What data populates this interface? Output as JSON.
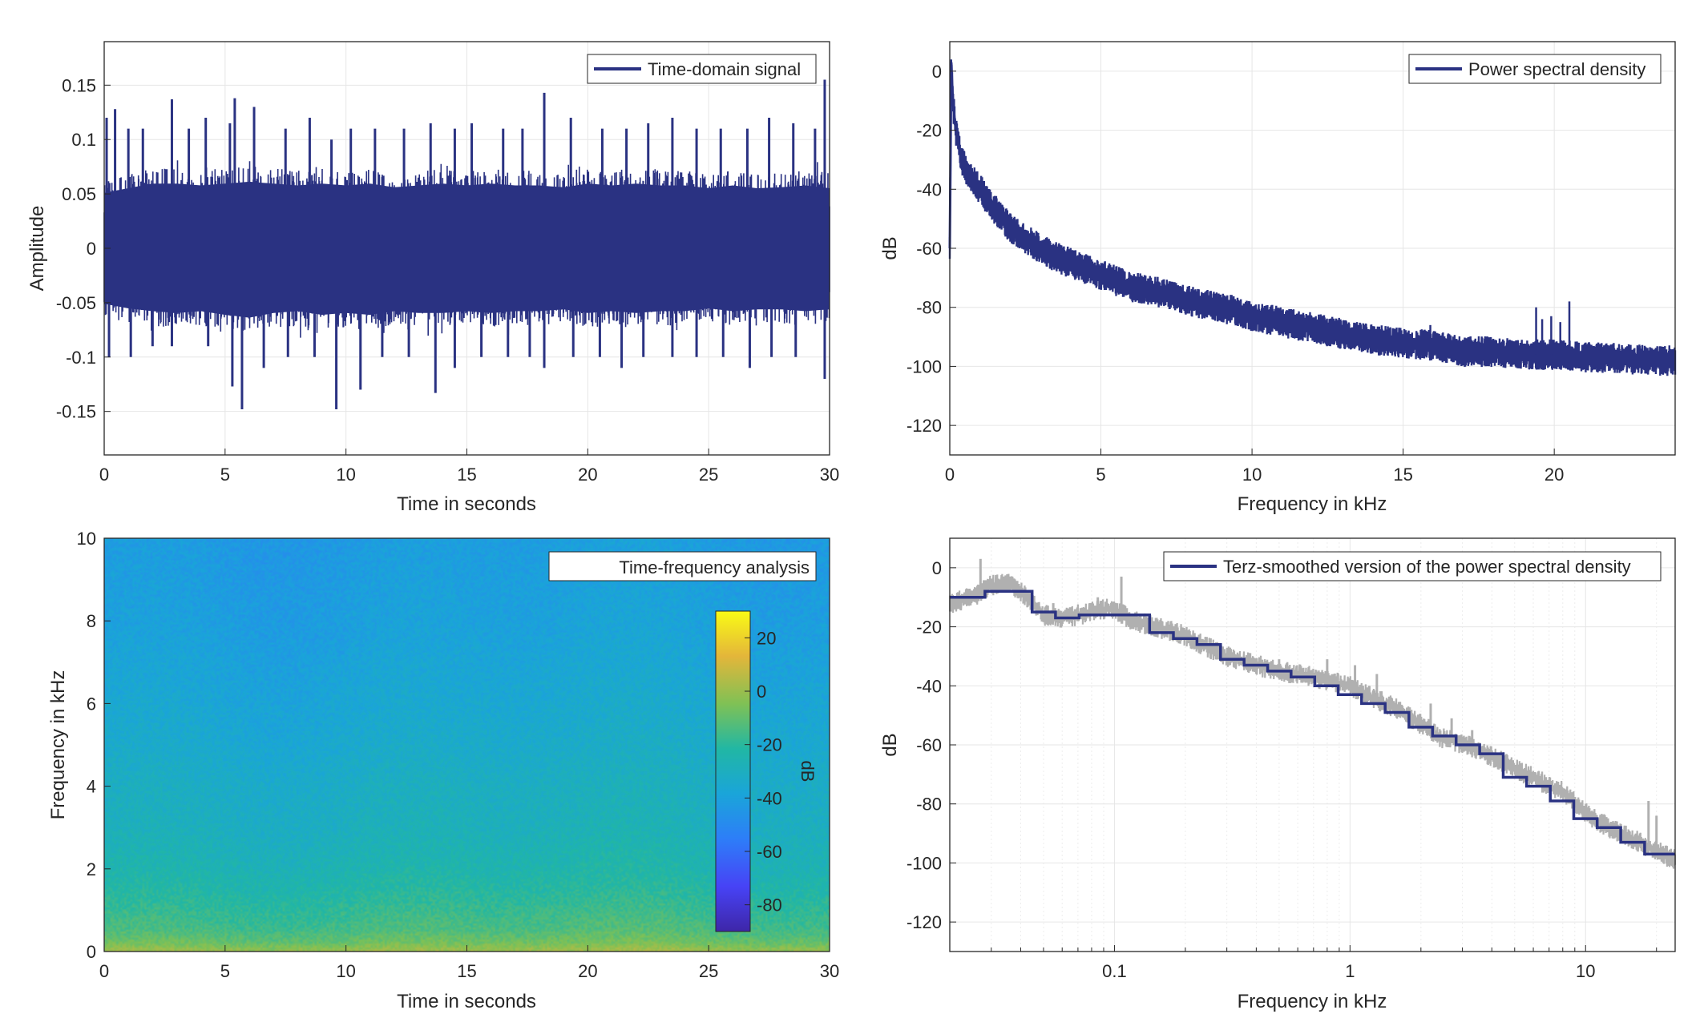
{
  "colors": {
    "series": "#2a3282",
    "raw_psd": "#b0b0b0",
    "grid": "#e6e6e6",
    "axes": "#262626",
    "colormap": "parula"
  },
  "chart_data": [
    {
      "id": "time-domain",
      "type": "line",
      "title": "",
      "xlabel": "Time in seconds",
      "ylabel": "Amplitude",
      "xlim": [
        0,
        30
      ],
      "ylim": [
        -0.19,
        0.19
      ],
      "xticks": [
        0,
        5,
        10,
        15,
        20,
        25,
        30
      ],
      "xtick_labels": [
        "0",
        "5",
        "10",
        "15",
        "20",
        "25",
        "30"
      ],
      "yticks": [
        -0.15,
        -0.1,
        -0.05,
        0,
        0.05,
        0.1,
        0.15
      ],
      "ytick_labels": [
        "-0.15",
        "-0.1",
        "-0.05",
        "0",
        "0.05",
        "0.1",
        "0.15"
      ],
      "grid": true,
      "legend": {
        "position": "top-right",
        "entries": [
          "Time-domain signal"
        ]
      },
      "series": [
        {
          "name": "Time-domain signal",
          "envelope_upper": [
            0.06,
            0.065,
            0.07,
            0.07,
            0.068,
            0.07,
            0.072,
            0.07,
            0.068,
            0.07,
            0.068,
            0.07,
            0.066,
            0.068,
            0.07,
            0.068,
            0.07,
            0.068,
            0.068,
            0.066,
            0.07,
            0.068,
            0.07,
            0.068,
            0.068,
            0.065,
            0.068,
            0.065,
            0.066,
            0.068,
            0.065
          ],
          "envelope_lower": [
            -0.06,
            -0.065,
            -0.068,
            -0.07,
            -0.068,
            -0.072,
            -0.075,
            -0.07,
            -0.068,
            -0.072,
            -0.07,
            -0.072,
            -0.068,
            -0.07,
            -0.07,
            -0.068,
            -0.07,
            -0.068,
            -0.068,
            -0.066,
            -0.07,
            -0.068,
            -0.07,
            -0.068,
            -0.068,
            -0.065,
            -0.068,
            -0.066,
            -0.066,
            -0.068,
            -0.066
          ],
          "peaks": [
            [
              0.1,
              0.12
            ],
            [
              0.45,
              0.128
            ],
            [
              1.0,
              0.11
            ],
            [
              1.6,
              0.11
            ],
            [
              2.8,
              0.137
            ],
            [
              3.5,
              0.11
            ],
            [
              4.2,
              0.12
            ],
            [
              5.2,
              0.115
            ],
            [
              5.4,
              0.138
            ],
            [
              6.2,
              0.13
            ],
            [
              7.5,
              0.11
            ],
            [
              8.5,
              0.12
            ],
            [
              9.4,
              0.1
            ],
            [
              10.2,
              0.11
            ],
            [
              11.2,
              0.11
            ],
            [
              12.4,
              0.11
            ],
            [
              13.5,
              0.115
            ],
            [
              14.5,
              0.11
            ],
            [
              15.2,
              0.115
            ],
            [
              16.5,
              0.11
            ],
            [
              17.3,
              0.11
            ],
            [
              18.2,
              0.143
            ],
            [
              19.3,
              0.12
            ],
            [
              20.6,
              0.11
            ],
            [
              21.6,
              0.11
            ],
            [
              22.5,
              0.115
            ],
            [
              23.5,
              0.12
            ],
            [
              24.5,
              0.11
            ],
            [
              25.5,
              0.11
            ],
            [
              26.6,
              0.11
            ],
            [
              27.5,
              0.12
            ],
            [
              28.5,
              0.115
            ],
            [
              29.4,
              0.11
            ],
            [
              29.8,
              0.155
            ],
            [
              0.2,
              -0.1
            ],
            [
              1.1,
              -0.1
            ],
            [
              2.0,
              -0.09
            ],
            [
              2.8,
              -0.09
            ],
            [
              4.3,
              -0.09
            ],
            [
              5.3,
              -0.127
            ],
            [
              5.7,
              -0.148
            ],
            [
              6.6,
              -0.11
            ],
            [
              7.6,
              -0.1
            ],
            [
              8.7,
              -0.1
            ],
            [
              9.6,
              -0.148
            ],
            [
              10.6,
              -0.13
            ],
            [
              11.5,
              -0.1
            ],
            [
              12.6,
              -0.1
            ],
            [
              13.7,
              -0.133
            ],
            [
              14.5,
              -0.11
            ],
            [
              15.6,
              -0.1
            ],
            [
              16.7,
              -0.1
            ],
            [
              17.6,
              -0.1
            ],
            [
              18.2,
              -0.11
            ],
            [
              19.4,
              -0.1
            ],
            [
              20.5,
              -0.1
            ],
            [
              21.4,
              -0.11
            ],
            [
              22.3,
              -0.1
            ],
            [
              23.5,
              -0.1
            ],
            [
              24.5,
              -0.1
            ],
            [
              25.6,
              -0.1
            ],
            [
              26.7,
              -0.11
            ],
            [
              27.6,
              -0.1
            ],
            [
              28.6,
              -0.1
            ],
            [
              29.8,
              -0.12
            ]
          ]
        }
      ]
    },
    {
      "id": "psd",
      "type": "line",
      "title": "",
      "xlabel": "Frequency in kHz",
      "ylabel": "dB",
      "xlim": [
        0,
        24
      ],
      "ylim": [
        -130,
        10
      ],
      "xticks": [
        0,
        5,
        10,
        15,
        20
      ],
      "xtick_labels": [
        "0",
        "5",
        "10",
        "15",
        "20"
      ],
      "yticks": [
        -120,
        -100,
        -80,
        -60,
        -40,
        -20,
        0
      ],
      "ytick_labels": [
        "-120",
        "-100",
        "-80",
        "-60",
        "-40",
        "-20",
        "0"
      ],
      "grid": true,
      "legend": {
        "position": "top-right",
        "entries": [
          "Power spectral density"
        ]
      },
      "series": [
        {
          "name": "Power spectral density",
          "x": [
            0,
            0.05,
            0.1,
            0.2,
            0.35,
            0.5,
            1,
            1.5,
            2,
            2.5,
            3,
            3.5,
            4,
            4.5,
            5,
            5.5,
            6,
            7,
            8,
            9,
            10,
            11,
            12,
            13,
            14,
            15,
            16,
            17,
            18,
            19,
            20,
            21,
            22,
            23,
            24
          ],
          "y": [
            -60,
            3,
            -10,
            -20,
            -28,
            -33,
            -40,
            -47,
            -53,
            -57,
            -60,
            -63,
            -65,
            -67,
            -69,
            -71,
            -73,
            -75,
            -78,
            -80,
            -83,
            -85,
            -87,
            -89,
            -91,
            -92,
            -93,
            -95,
            -95,
            -96,
            -96,
            -97,
            -97,
            -98,
            -98
          ],
          "spread": 4,
          "spikes": [
            [
              15.9,
              -86
            ],
            [
              19.4,
              -80
            ],
            [
              19.6,
              -84
            ],
            [
              19.9,
              -83
            ],
            [
              20.2,
              -85
            ],
            [
              20.5,
              -78
            ]
          ]
        }
      ]
    },
    {
      "id": "spectrogram",
      "type": "heatmap",
      "title": "",
      "xlabel": "Time in seconds",
      "ylabel": "Frequency in kHz",
      "xlim": [
        0,
        30
      ],
      "ylim": [
        0,
        10
      ],
      "xticks": [
        0,
        5,
        10,
        15,
        20,
        25,
        30
      ],
      "xtick_labels": [
        "0",
        "5",
        "10",
        "15",
        "20",
        "25",
        "30"
      ],
      "yticks": [
        0,
        2,
        4,
        6,
        8,
        10
      ],
      "ytick_labels": [
        "0",
        "2",
        "4",
        "6",
        "8",
        "10"
      ],
      "legend": {
        "position": "top-right",
        "entries": [
          "Time-frequency analysis"
        ]
      },
      "colorbar": {
        "label": "dB",
        "clim": [
          -90,
          30
        ],
        "ticks": [
          -80,
          -60,
          -40,
          -20,
          0,
          20
        ],
        "tick_labels": [
          "-80",
          "-60",
          "-40",
          "-20",
          "0",
          "20"
        ],
        "position": "inside-right"
      },
      "level_profile": {
        "freq_khz": [
          0,
          0.2,
          0.5,
          1,
          1.5,
          2,
          3,
          4,
          5,
          6,
          7,
          8,
          9,
          10
        ],
        "db": [
          0,
          -8,
          -14,
          -18,
          -22,
          -25,
          -29,
          -31,
          -34,
          -36,
          -38,
          -40,
          -41,
          -42
        ]
      }
    },
    {
      "id": "terz-psd",
      "type": "line",
      "title": "",
      "xlabel": "Frequency in kHz",
      "ylabel": "dB",
      "xscale": "log",
      "xlim": [
        0.02,
        24
      ],
      "ylim": [
        -130,
        10
      ],
      "xticks": [
        0.1,
        1,
        10
      ],
      "xtick_labels": [
        "0.1",
        "1",
        "10"
      ],
      "yticks": [
        -120,
        -100,
        -80,
        -60,
        -40,
        -20,
        0
      ],
      "ytick_labels": [
        "-120",
        "-100",
        "-80",
        "-60",
        "-40",
        "-20",
        "0"
      ],
      "grid": true,
      "legend": {
        "position": "top-right",
        "entries": [
          "Terz-smoothed version of the power spectral density"
        ]
      },
      "series": [
        {
          "name": "raw",
          "x": [
            0.02,
            0.025,
            0.03,
            0.035,
            0.04,
            0.045,
            0.05,
            0.06,
            0.07,
            0.08,
            0.09,
            0.1,
            0.12,
            0.15,
            0.2,
            0.25,
            0.3,
            0.4,
            0.5,
            0.6,
            0.8,
            1,
            1.25,
            1.6,
            2,
            2.5,
            3.15,
            4,
            5,
            6.3,
            8,
            10,
            12.5,
            16,
            20,
            24
          ],
          "y": [
            -12,
            -10,
            -6,
            -5,
            -8,
            -12,
            -16,
            -17,
            -16,
            -15,
            -14,
            -14,
            -18,
            -20,
            -23,
            -27,
            -30,
            -33,
            -35,
            -36,
            -38,
            -40,
            -44,
            -48,
            -53,
            -58,
            -60,
            -64,
            -68,
            -72,
            -76,
            -83,
            -88,
            -92,
            -96,
            -99
          ],
          "spread": 3,
          "spikes": [
            [
              0.027,
              3
            ],
            [
              0.033,
              -4
            ],
            [
              0.055,
              -12
            ],
            [
              0.085,
              -10
            ],
            [
              0.107,
              -3
            ],
            [
              0.15,
              -17
            ],
            [
              0.5,
              -31
            ],
            [
              0.8,
              -31
            ],
            [
              1.05,
              -33
            ],
            [
              1.3,
              -36
            ],
            [
              2.2,
              -46
            ],
            [
              2.7,
              -51
            ],
            [
              3.3,
              -55
            ],
            [
              18.5,
              -79
            ],
            [
              20,
              -84
            ]
          ]
        },
        {
          "name": "Terz-smoothed version of the power spectral density",
          "type": "step",
          "x": [
            0.02,
            0.0282,
            0.0447,
            0.0562,
            0.0708,
            0.141,
            0.178,
            0.224,
            0.282,
            0.355,
            0.447,
            0.562,
            0.708,
            0.891,
            1.12,
            1.41,
            1.78,
            2.24,
            2.82,
            3.55,
            4.47,
            5.62,
            7.08,
            8.91,
            11.2,
            14.1,
            17.8,
            24
          ],
          "y": [
            -10,
            -8,
            -15,
            -17,
            -16,
            -22,
            -24,
            -26,
            -31,
            -33,
            -35,
            -37,
            -40,
            -43,
            -46,
            -49,
            -54,
            -57,
            -60,
            -63,
            -71,
            -74,
            -79,
            -85,
            -88,
            -93,
            -97,
            -97
          ]
        }
      ]
    }
  ]
}
